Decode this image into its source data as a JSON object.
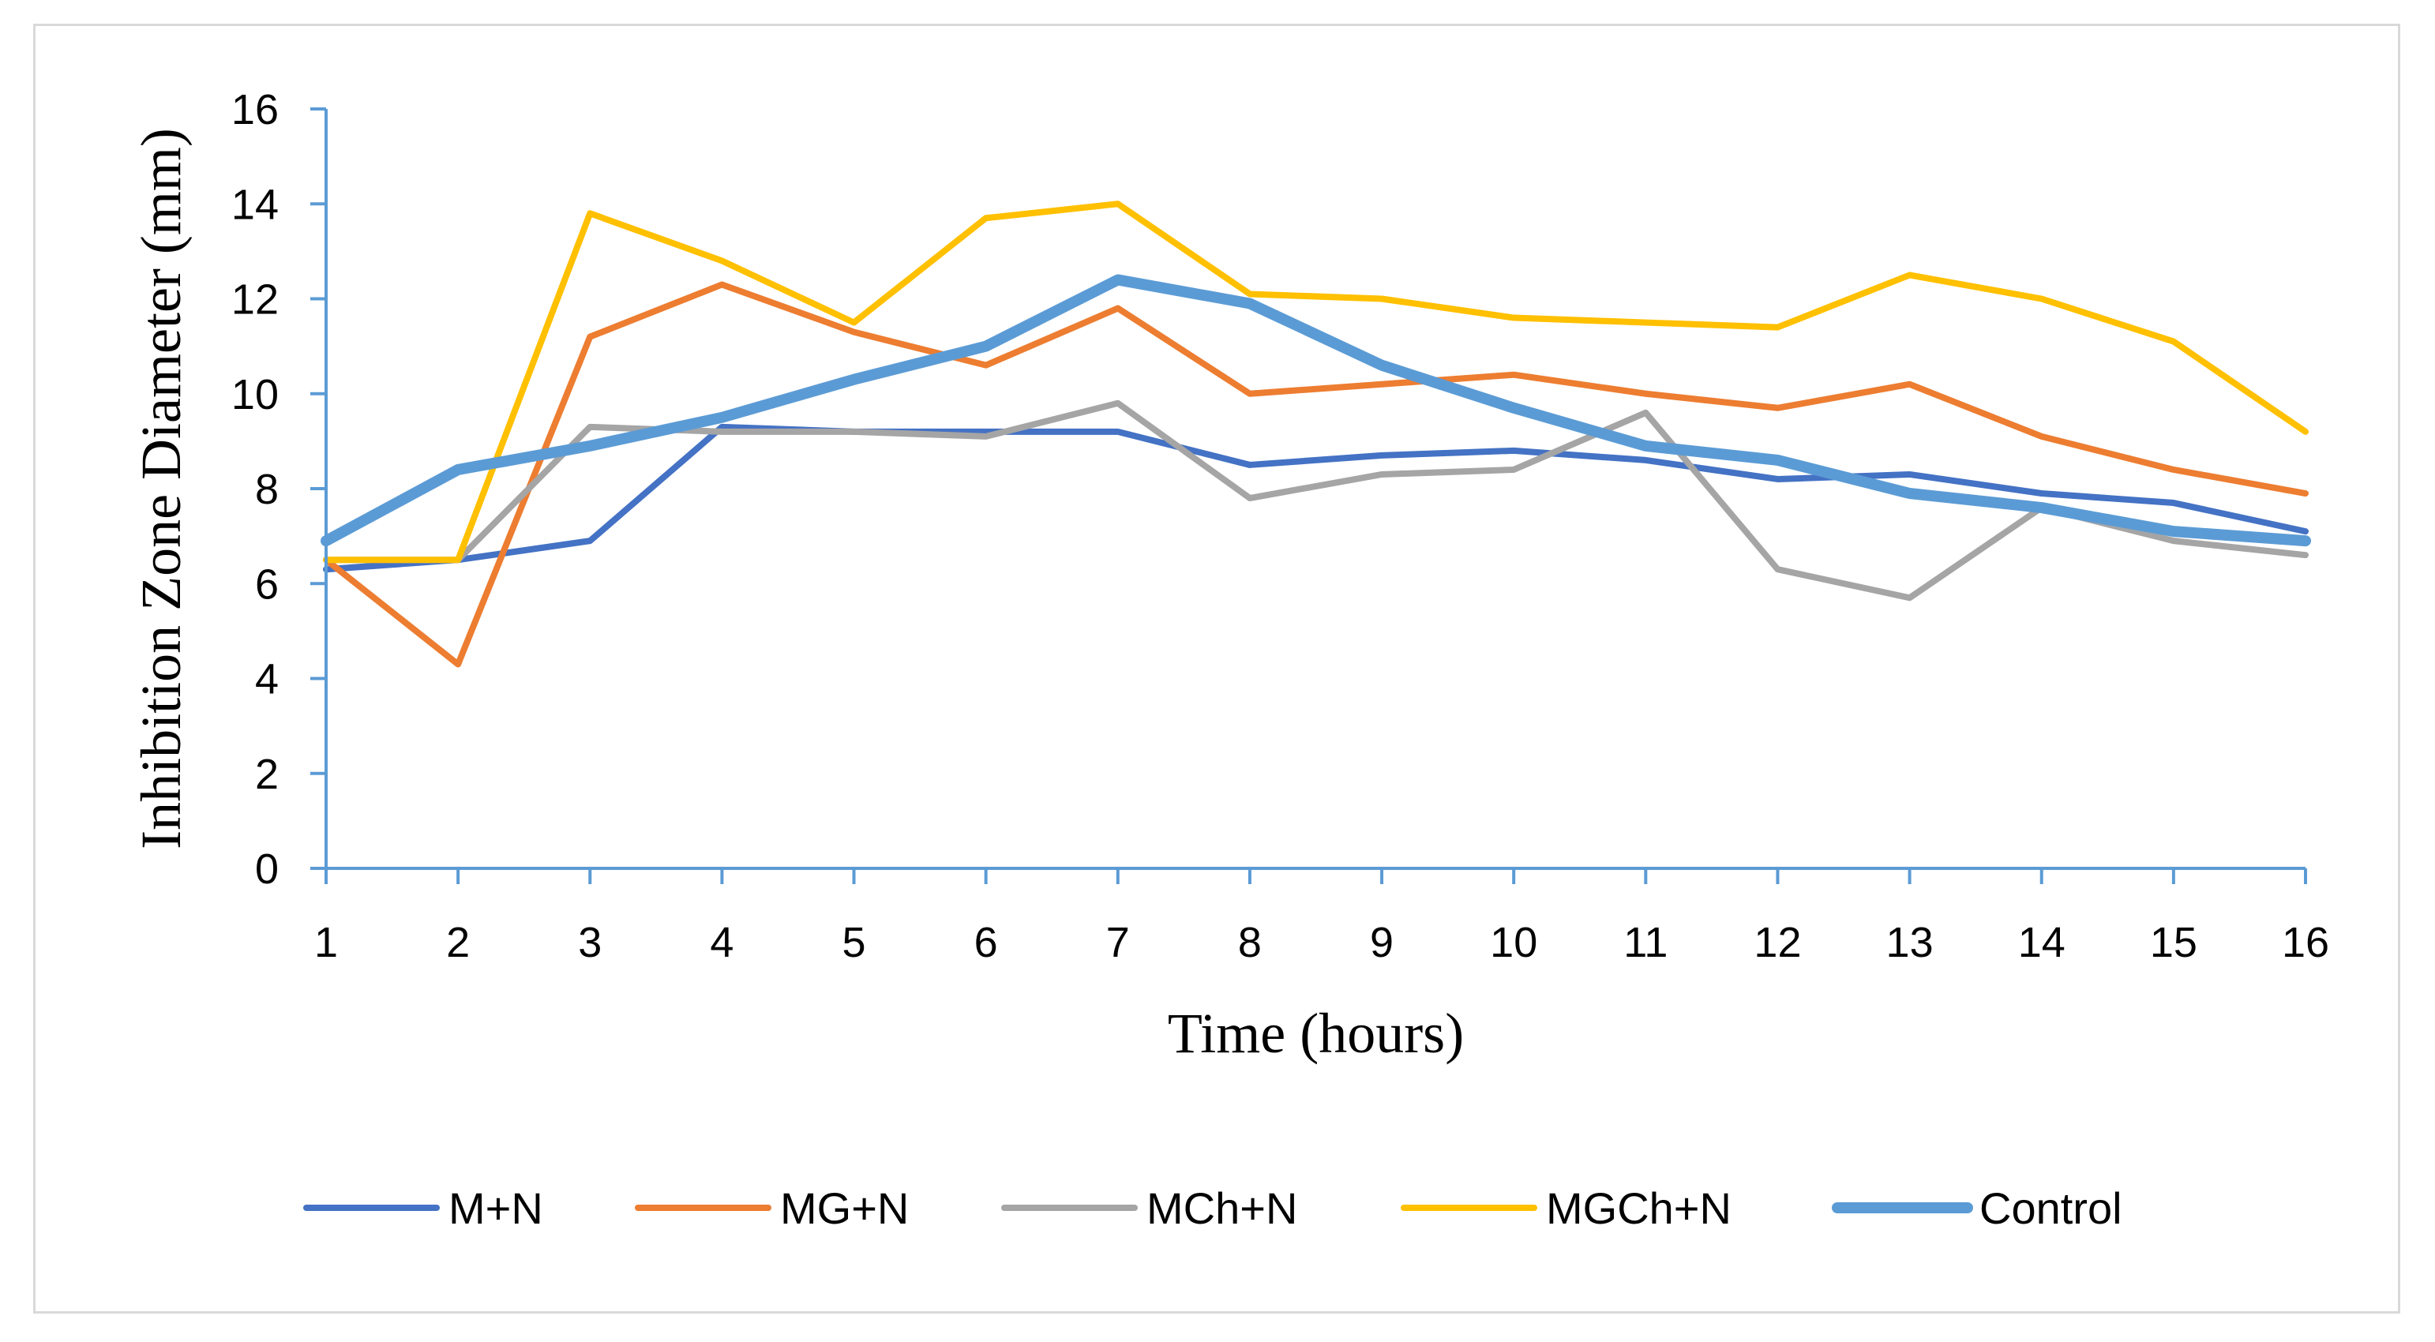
{
  "chart_data": {
    "type": "line",
    "title": "",
    "xlabel": "Time (hours)",
    "ylabel": "Inhibition Zone Diameter (mm)",
    "x": [
      1,
      2,
      3,
      4,
      5,
      6,
      7,
      8,
      9,
      10,
      11,
      12,
      13,
      14,
      15,
      16
    ],
    "ylim": [
      0,
      16
    ],
    "yticks": [
      0,
      2,
      4,
      6,
      8,
      10,
      12,
      14,
      16
    ],
    "grid": false,
    "legend_position": "bottom",
    "axis_color": "#5b9bd5",
    "series": [
      {
        "name": "M+N",
        "color": "#4472c4",
        "width": 8,
        "values": [
          6.3,
          6.5,
          6.9,
          9.3,
          9.2,
          9.2,
          9.2,
          8.5,
          8.7,
          8.8,
          8.6,
          8.2,
          8.3,
          7.9,
          7.7,
          7.1
        ]
      },
      {
        "name": "MG+N",
        "color": "#ed7d31",
        "width": 8,
        "values": [
          6.5,
          4.3,
          11.2,
          12.3,
          11.3,
          10.6,
          11.8,
          10.0,
          10.2,
          10.4,
          10.0,
          9.7,
          10.2,
          9.1,
          8.4,
          7.9
        ]
      },
      {
        "name": "MCh+N",
        "color": "#a5a5a5",
        "width": 8,
        "values": [
          6.5,
          6.5,
          9.3,
          9.2,
          9.2,
          9.1,
          9.8,
          7.8,
          8.3,
          8.4,
          9.6,
          6.3,
          5.7,
          7.6,
          6.9,
          6.6
        ]
      },
      {
        "name": "MGCh+N",
        "color": "#ffc000",
        "width": 8,
        "values": [
          6.5,
          6.5,
          13.8,
          12.8,
          11.5,
          13.7,
          14.0,
          12.1,
          12.0,
          11.6,
          11.5,
          11.4,
          12.5,
          12.0,
          11.1,
          9.2
        ]
      },
      {
        "name": "Control",
        "color": "#5b9bd5",
        "width": 14,
        "values": [
          6.9,
          8.4,
          8.9,
          9.5,
          10.3,
          11.0,
          12.4,
          11.9,
          10.6,
          9.7,
          8.9,
          8.6,
          7.9,
          7.6,
          7.1,
          6.9
        ]
      }
    ]
  }
}
